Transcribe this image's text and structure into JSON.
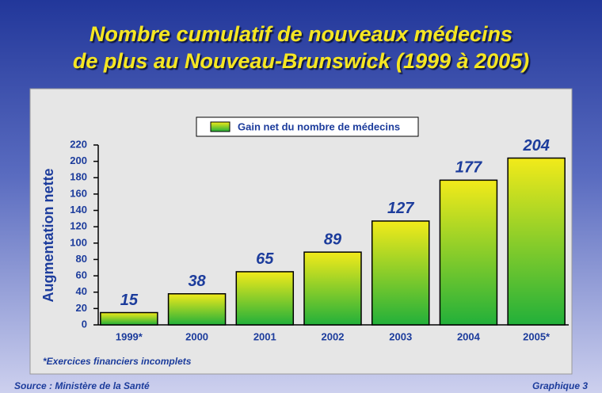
{
  "chart_data": {
    "type": "bar",
    "title": [
      "Nombre cumulatif de nouveaux médecins",
      "de plus au Nouveau-Brunswick (1999 à 2005)"
    ],
    "ylabel": "Augmentation nette",
    "categories": [
      "1999*",
      "2000",
      "2001",
      "2002",
      "2003",
      "2004",
      "2005*"
    ],
    "series": [
      {
        "name": "Gain net du nombre de médecins",
        "color": "#8fd02a",
        "values": [
          15,
          38,
          65,
          89,
          127,
          177,
          204
        ]
      }
    ],
    "ylim": [
      0,
      220
    ],
    "yticks": [
      0,
      20,
      40,
      60,
      80,
      100,
      120,
      140,
      160,
      180,
      200,
      220
    ],
    "note": "*Exercices financiers incomplets",
    "source": "Source : Ministère de la Santé",
    "figure_label": "Graphique 3"
  }
}
